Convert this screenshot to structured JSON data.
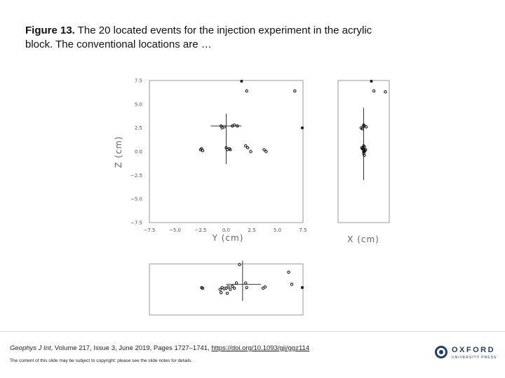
{
  "slide": {
    "title_lead": "Figure 13.",
    "title_text": " The 20 located events for the injection experiment in the acrylic block. The conventional locations are …",
    "citation_prefix": "Geophys J Int",
    "citation_middle": ", Volume 217, Issue 3, June 2019, Pages 1727–1741, ",
    "citation_link": "https://doi.org/10.1093/gji/ggz114",
    "copyright": "The content of this slide may be subject to copyright: please see the slide notes for details.",
    "publisher": "OXFORD",
    "publisher_sub": "UNIVERSITY PRESS"
  },
  "chart_data": [
    {
      "type": "scatter",
      "panel": "Y-Z view",
      "xlabel": "Y (cm)",
      "ylabel": "Z (cm)",
      "xlim": [
        -7.5,
        7.5
      ],
      "ylim": [
        -7.5,
        7.5
      ],
      "xticks": [
        "−7.5",
        "−5.0",
        "−2.5",
        "0.0",
        "2.5",
        "5.0",
        "7.5"
      ],
      "yticks": [
        "7.5",
        "5.0",
        "2.5",
        "0.0",
        "−2.5",
        "−5.0",
        "−7.5"
      ],
      "series": [
        {
          "marker": "open-circle",
          "x": [
            -2.4,
            -2.3,
            -2.5,
            0.0,
            0.1,
            0.3,
            0.4,
            -0.4,
            -0.2,
            0.6,
            0.8,
            1.1,
            1.9,
            2.1,
            2.4,
            3.7,
            3.9,
            2.0,
            6.7,
            -0.5
          ],
          "y": [
            0.3,
            0.1,
            0.2,
            0.4,
            0.2,
            0.3,
            0.2,
            2.5,
            2.6,
            2.7,
            2.8,
            2.7,
            0.6,
            0.4,
            0.0,
            0.2,
            0.0,
            6.4,
            6.4,
            2.7
          ]
        },
        {
          "marker": "filled-square",
          "x": [
            1.5,
            7.5
          ],
          "y": [
            7.5,
            2.5
          ]
        }
      ],
      "crosshair": {
        "x": 0.0,
        "y": 2.7,
        "x_extent": [
          -1.5,
          1.5
        ],
        "y_extent": [
          -1.3,
          4.0
        ]
      }
    },
    {
      "type": "scatter",
      "panel": "X-Z view",
      "xlabel": "X (cm)",
      "series": [
        {
          "marker": "open-circle",
          "x": [
            -0.4,
            -0.1,
            0.0,
            0.1,
            0.4,
            -0.2,
            0.0,
            0.1,
            -0.3,
            0.2,
            0.0,
            0.1,
            -0.1,
            0.3,
            0.0,
            1.6,
            3.4,
            -0.2,
            0.0,
            0.1
          ],
          "y": [
            2.5,
            2.6,
            2.8,
            2.7,
            2.6,
            0.3,
            0.2,
            0.5,
            0.4,
            0.1,
            -0.2,
            0.0,
            0.3,
            0.2,
            0.6,
            6.4,
            6.3,
            2.4,
            0.0,
            -0.4
          ]
        },
        {
          "marker": "filled-square",
          "x": [
            1.2
          ],
          "y": [
            7.5
          ]
        }
      ],
      "crosshair": {
        "x": 0.0,
        "y": 0.8,
        "y_extent": [
          -3.0,
          4.6
        ]
      }
    },
    {
      "type": "scatter",
      "panel": "Y-X view",
      "series": [
        {
          "marker": "open-circle",
          "x": [
            -2.4,
            -2.3,
            -0.4,
            -0.2,
            0.0,
            0.2,
            0.4,
            -0.5,
            0.1,
            0.6,
            0.8,
            1.0,
            1.9,
            2.0,
            3.6,
            3.8,
            6.1,
            6.4,
            1.3,
            -0.6
          ],
          "y": [
            0.3,
            0.2,
            0.3,
            0.1,
            0.2,
            0.4,
            0.0,
            -0.5,
            -0.6,
            0.5,
            0.2,
            1.0,
            1.0,
            0.3,
            0.2,
            0.4,
            2.7,
            0.8,
            4.3,
            0.0
          ]
        },
        {
          "marker": "filled-square",
          "x": [
            7.5
          ],
          "y": [
            0.3
          ]
        }
      ],
      "crosshair": {
        "x": 1.6,
        "y": 0.8,
        "x_extent": [
          0.0,
          3.4
        ],
        "y_extent": [
          -1.8,
          4.5
        ]
      }
    }
  ]
}
